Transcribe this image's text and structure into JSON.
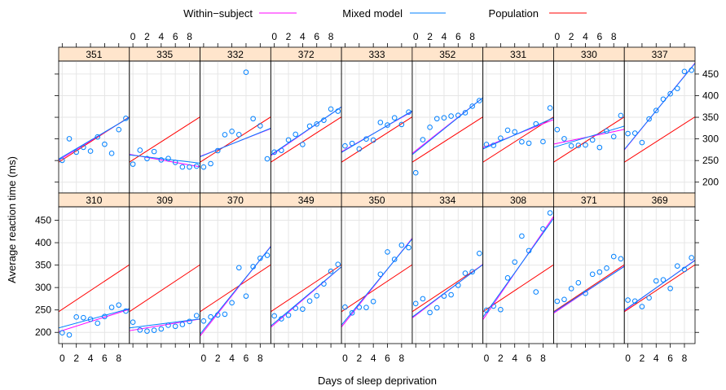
{
  "chart_data": {
    "type": "scatter",
    "xlabel": "Days of sleep deprivation",
    "ylabel": "Average reaction time (ms)",
    "xlim": [
      -0.5,
      9.5
    ],
    "ylim": [
      175,
      480
    ],
    "x_ticks": [
      0,
      2,
      4,
      6,
      8
    ],
    "x_tick_labels": [
      "0",
      "2",
      "4",
      "6",
      "8"
    ],
    "y_ticks": [
      200,
      250,
      300,
      350,
      400,
      450
    ],
    "y_tick_labels": [
      "200",
      "250",
      "300",
      "350",
      "400",
      "450"
    ],
    "grid": true,
    "legend_position": "top",
    "legend": [
      {
        "key": "within",
        "label": "Within−subject",
        "color": "#ff00ff"
      },
      {
        "key": "mixed",
        "label": "Mixed model",
        "color": "#0080ff"
      },
      {
        "key": "population",
        "label": "Population",
        "color": "#ff0000"
      }
    ],
    "point_color": "#0080ff",
    "population_line": {
      "intercept": 251.4,
      "slope": 10.47
    },
    "x": [
      0,
      1,
      2,
      3,
      4,
      5,
      6,
      7,
      8,
      9
    ],
    "panels": [
      {
        "subject": "351",
        "row": 0,
        "col": 0,
        "y": [
          250.5,
          300.4,
          269.4,
          280.6,
          271.8,
          304.6,
          287.7,
          266.6,
          321.5,
          347.6
        ],
        "within": [
          255.7,
          9.9
        ],
        "mixed": [
          258.3,
          9.6
        ]
      },
      {
        "subject": "335",
        "row": 0,
        "col": 1,
        "y": [
          241.6,
          273.9,
          254.5,
          270.8,
          251.5,
          254.6,
          245.8,
          235.1,
          235.0,
          237.0
        ],
        "within": [
          263.0,
          -2.9
        ],
        "mixed": [
          262.0,
          -1.9
        ]
      },
      {
        "subject": "332",
        "row": 0,
        "col": 2,
        "y": [
          234.9,
          242.8,
          272.9,
          309.8,
          317.5,
          309.9,
          454.2,
          346.8,
          330.3,
          253.9
        ],
        "within": [
          262.8,
          6.4
        ],
        "mixed": [
          262.0,
          6.6
        ]
      },
      {
        "subject": "372",
        "row": 0,
        "col": 3,
        "y": [
          269.4,
          273.5,
          297.6,
          310.6,
          287.2,
          329.6,
          334.5,
          343.2,
          369.1,
          364.1
        ],
        "within": [
          266.9,
          11.3
        ],
        "mixed": [
          268.5,
          11.1
        ]
      },
      {
        "subject": "333",
        "row": 0,
        "col": 4,
        "y": [
          283.8,
          289.6,
          276.8,
          299.8,
          297.2,
          338.1,
          332.0,
          348.8,
          333.4,
          362.0
        ],
        "within": [
          275.0,
          9.3
        ],
        "mixed": [
          273.5,
          9.6
        ]
      },
      {
        "subject": "352",
        "row": 0,
        "col": 5,
        "y": [
          221.7,
          298.2,
          326.9,
          346.8,
          348.8,
          352.8,
          354.4,
          360.5,
          375.6,
          388.5
        ],
        "within": [
          272.8,
          12.9
        ],
        "mixed": [
          270.2,
          13.2
        ]
      },
      {
        "subject": "331",
        "row": 0,
        "col": 6,
        "y": [
          287.2,
          285.0,
          301.8,
          320.1,
          316.3,
          293.3,
          290.1,
          334.8,
          293.7,
          371.6
        ],
        "within": [
          283.0,
          6.5
        ],
        "mixed": [
          280.3,
          7.2
        ]
      },
      {
        "subject": "330",
        "row": 0,
        "col": 7,
        "y": [
          321.5,
          300.4,
          283.9,
          285.1,
          285.9,
          297.6,
          280.2,
          318.3,
          305.3,
          354.0
        ],
        "within": [
          289.7,
          3.4
        ],
        "mixed": [
          283.0,
          4.9
        ]
      },
      {
        "subject": "337",
        "row": 0,
        "col": 8,
        "y": [
          312.4,
          313.2,
          291.6,
          346.1,
          365.7,
          391.8,
          404.3,
          416.7,
          455.9,
          458.9
        ],
        "within": [
          284.6,
          20.1
        ],
        "mixed": [
          285.5,
          19.9
        ]
      },
      {
        "subject": "310",
        "row": 1,
        "col": 0,
        "y": [
          199.1,
          194.3,
          234.3,
          232.8,
          229.3,
          220.5,
          235.4,
          255.8,
          261.0,
          247.5
        ],
        "within": [
          204.0,
          5.0
        ],
        "mixed": [
          212.0,
          4.3
        ]
      },
      {
        "subject": "309",
        "row": 1,
        "col": 1,
        "y": [
          222.7,
          205.3,
          202.9,
          204.7,
          207.7,
          215.9,
          213.6,
          217.7,
          224.3,
          237.3
        ],
        "within": [
          205.0,
          2.6
        ],
        "mixed": [
          211.0,
          2.0
        ]
      },
      {
        "subject": "370",
        "row": 1,
        "col": 2,
        "y": [
          225.3,
          234.5,
          238.9,
          240.5,
          266.1,
          344.2,
          280.9,
          346.6,
          365.4,
          371.9
        ],
        "within": [
          202.0,
          20.0
        ],
        "mixed": [
          206.0,
          19.5
        ]
      },
      {
        "subject": "349",
        "row": 1,
        "col": 3,
        "y": [
          236.8,
          230.3,
          238.3,
          253.8,
          251.9,
          269.9,
          281.6,
          308.1,
          336.2,
          351.6
        ],
        "within": [
          218.0,
          13.5
        ],
        "mixed": [
          221.0,
          13.2
        ]
      },
      {
        "subject": "350",
        "row": 1,
        "col": 4,
        "y": [
          256.3,
          243.5,
          256.0,
          255.5,
          268.9,
          329.7,
          379.4,
          362.9,
          394.5,
          389.0
        ],
        "within": [
          222.0,
          19.8
        ],
        "mixed": [
          226.0,
          19.2
        ]
      },
      {
        "subject": "334",
        "row": 1,
        "col": 5,
        "y": [
          264.3,
          274.9,
          244.2,
          254.8,
          281.0,
          283.9,
          305.0,
          331.9,
          335.1,
          376.2
        ],
        "within": [
          238.0,
          12.0
        ],
        "mixed": [
          240.0,
          11.7
        ]
      },
      {
        "subject": "308",
        "row": 1,
        "col": 6,
        "y": [
          249.6,
          258.7,
          250.8,
          321.4,
          356.9,
          414.7,
          382.2,
          290.1,
          430.6,
          466.4
        ],
        "within": [
          240.0,
          23.0
        ],
        "mixed": [
          245.0,
          22.0
        ]
      },
      {
        "subject": "371",
        "row": 1,
        "col": 7,
        "y": [
          269.4,
          273.4,
          297.6,
          310.6,
          287.2,
          329.6,
          334.5,
          343.2,
          369.1,
          364.1
        ],
        "within": [
          248.0,
          10.5
        ],
        "mixed": [
          250.0,
          10.2
        ]
      },
      {
        "subject": "369",
        "row": 1,
        "col": 8,
        "y": [
          272.0,
          269.8,
          257.5,
          277.0,
          314.8,
          317.2,
          298.0,
          348.1,
          340.3,
          366.5
        ],
        "within": [
          254.0,
          11.3
        ],
        "mixed": [
          255.0,
          11.1
        ]
      }
    ]
  }
}
